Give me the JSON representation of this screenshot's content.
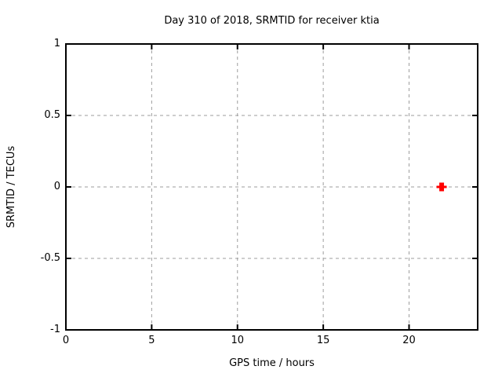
{
  "window": {
    "background": "#ffffff"
  },
  "chart_data": {
    "type": "scatter",
    "title": "Day 310 of 2018, SRMTID for receiver ktia",
    "xlabel": "GPS time / hours",
    "ylabel": "SRMTID / TECUs",
    "xlim": [
      0,
      24
    ],
    "ylim": [
      -1,
      1
    ],
    "xticks": [
      {
        "value": 0,
        "label": "0"
      },
      {
        "value": 5,
        "label": "5"
      },
      {
        "value": 10,
        "label": "10"
      },
      {
        "value": 15,
        "label": "15"
      },
      {
        "value": 20,
        "label": "20"
      }
    ],
    "yticks": [
      {
        "value": 1,
        "label": "1"
      },
      {
        "value": 0.5,
        "label": "0.5"
      },
      {
        "value": 0,
        "label": "0"
      },
      {
        "value": -0.5,
        "label": "-0.5"
      },
      {
        "value": -1,
        "label": "-1"
      }
    ],
    "grid": true,
    "legend": "none",
    "series": [
      {
        "name": "SRMTID",
        "marker": "bold-plus",
        "color": "#ff0000",
        "points": [
          {
            "x": 21.9,
            "y": 0.0
          }
        ]
      }
    ],
    "colors": {
      "axis_border": "#000000",
      "grid": "#9e9e9e",
      "text": "#000000",
      "background": "#ffffff"
    }
  }
}
